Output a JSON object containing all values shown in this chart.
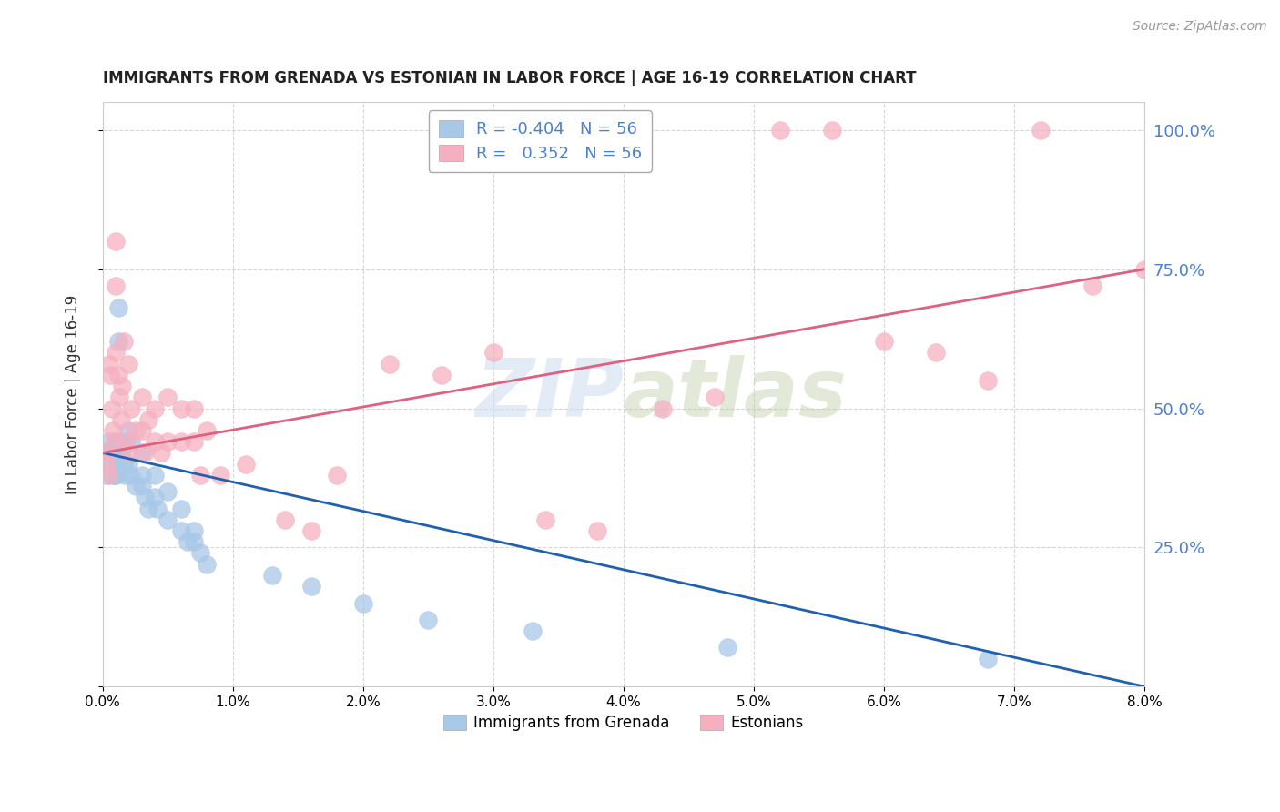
{
  "title": "IMMIGRANTS FROM GRENADA VS ESTONIAN IN LABOR FORCE | AGE 16-19 CORRELATION CHART",
  "source": "Source: ZipAtlas.com",
  "ylabel": "In Labor Force | Age 16-19",
  "legend_label1": "Immigrants from Grenada",
  "legend_label2": "Estonians",
  "r1": -0.404,
  "n1": 56,
  "r2": 0.352,
  "n2": 56,
  "color_blue": "#a8c8e8",
  "color_pink": "#f5b0c0",
  "color_blue_line": "#2060b0",
  "color_pink_line": "#e06080",
  "color_right_axis": "#4a7fd4",
  "watermark_color": "#d0dff0",
  "xlim": [
    0.0,
    0.08
  ],
  "ylim": [
    0.0,
    1.05
  ],
  "blue_scatter_x": [
    0.0002,
    0.0003,
    0.0003,
    0.0004,
    0.0005,
    0.0006,
    0.0006,
    0.0007,
    0.0007,
    0.0008,
    0.0008,
    0.0009,
    0.0009,
    0.001,
    0.001,
    0.001,
    0.001,
    0.001,
    0.001,
    0.0012,
    0.0012,
    0.0013,
    0.0013,
    0.0015,
    0.0015,
    0.0016,
    0.0017,
    0.002,
    0.002,
    0.0022,
    0.0022,
    0.0025,
    0.003,
    0.003,
    0.003,
    0.0032,
    0.0035,
    0.004,
    0.004,
    0.0042,
    0.005,
    0.005,
    0.006,
    0.006,
    0.0065,
    0.007,
    0.007,
    0.0075,
    0.008,
    0.013,
    0.016,
    0.02,
    0.025,
    0.033,
    0.048,
    0.068
  ],
  "blue_scatter_y": [
    0.42,
    0.4,
    0.38,
    0.42,
    0.44,
    0.42,
    0.4,
    0.42,
    0.4,
    0.42,
    0.38,
    0.4,
    0.38,
    0.44,
    0.43,
    0.42,
    0.41,
    0.4,
    0.38,
    0.68,
    0.62,
    0.44,
    0.42,
    0.43,
    0.42,
    0.4,
    0.38,
    0.46,
    0.4,
    0.44,
    0.38,
    0.36,
    0.42,
    0.38,
    0.36,
    0.34,
    0.32,
    0.38,
    0.34,
    0.32,
    0.35,
    0.3,
    0.32,
    0.28,
    0.26,
    0.28,
    0.26,
    0.24,
    0.22,
    0.2,
    0.18,
    0.15,
    0.12,
    0.1,
    0.07,
    0.05
  ],
  "pink_scatter_x": [
    0.0002,
    0.0003,
    0.0004,
    0.0005,
    0.0006,
    0.0007,
    0.0008,
    0.0009,
    0.001,
    0.001,
    0.001,
    0.0012,
    0.0013,
    0.0014,
    0.0015,
    0.0016,
    0.0018,
    0.002,
    0.002,
    0.0022,
    0.0025,
    0.003,
    0.003,
    0.0032,
    0.0035,
    0.004,
    0.004,
    0.0045,
    0.005,
    0.005,
    0.006,
    0.006,
    0.007,
    0.007,
    0.0075,
    0.008,
    0.009,
    0.011,
    0.014,
    0.016,
    0.018,
    0.022,
    0.026,
    0.03,
    0.034,
    0.038,
    0.043,
    0.047,
    0.052,
    0.056,
    0.06,
    0.064,
    0.068,
    0.072,
    0.076,
    0.08
  ],
  "pink_scatter_y": [
    0.42,
    0.4,
    0.38,
    0.58,
    0.56,
    0.5,
    0.46,
    0.44,
    0.8,
    0.72,
    0.6,
    0.56,
    0.52,
    0.48,
    0.54,
    0.62,
    0.44,
    0.58,
    0.42,
    0.5,
    0.46,
    0.52,
    0.46,
    0.42,
    0.48,
    0.5,
    0.44,
    0.42,
    0.52,
    0.44,
    0.5,
    0.44,
    0.5,
    0.44,
    0.38,
    0.46,
    0.38,
    0.4,
    0.3,
    0.28,
    0.38,
    0.58,
    0.56,
    0.6,
    0.3,
    0.28,
    0.5,
    0.52,
    1.0,
    1.0,
    0.62,
    0.6,
    0.55,
    1.0,
    0.72,
    0.75
  ]
}
